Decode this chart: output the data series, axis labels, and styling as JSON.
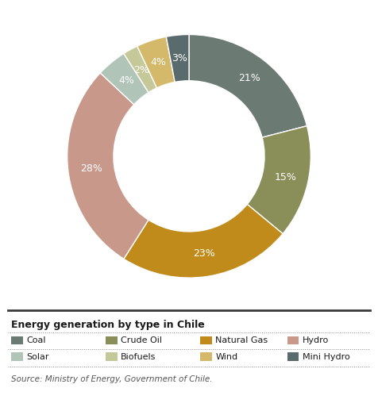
{
  "labels": [
    "Coal",
    "Crude Oil",
    "Natural Gas",
    "Hydro",
    "Solar",
    "Biofuels",
    "Wind",
    "Mini Hydro"
  ],
  "values": [
    21,
    15,
    23,
    28,
    4,
    2,
    4,
    3
  ],
  "colors": [
    "#6b7b74",
    "#8a8f5a",
    "#c08b1a",
    "#c8998a",
    "#b0c4b8",
    "#c5c99a",
    "#d4b96a",
    "#5a6b6e"
  ],
  "pct_labels": [
    "21%",
    "15%",
    "23%",
    "28%",
    "4%",
    "2%",
    "4%",
    "3%"
  ],
  "title": "Energy generation by type in Chile",
  "source": "Source: Ministry of Energy, Government of Chile.",
  "background_color": "#ffffff",
  "label_color": "#ffffff",
  "start_angle": 90,
  "donut_width": 0.38
}
